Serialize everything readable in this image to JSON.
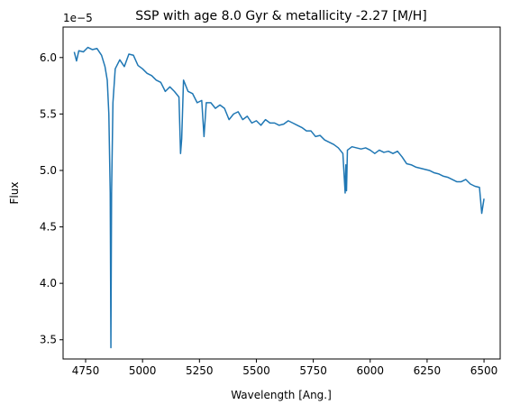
{
  "chart_data": {
    "type": "line",
    "title": "SSP with age 8.0 Gyr & metallicity -2.27 [M/H]",
    "x_label": "Wavelength [Ang.]",
    "y_label": "Flux",
    "y_offset_label": "1e−5",
    "x": [
      4700,
      4710,
      4720,
      4740,
      4760,
      4780,
      4800,
      4820,
      4835,
      4845,
      4852,
      4858,
      4861,
      4864,
      4870,
      4880,
      4900,
      4920,
      4940,
      4960,
      4980,
      5000,
      5020,
      5040,
      5060,
      5080,
      5100,
      5120,
      5140,
      5160,
      5167,
      5172,
      5180,
      5200,
      5220,
      5240,
      5260,
      5270,
      5280,
      5300,
      5320,
      5340,
      5360,
      5380,
      5400,
      5420,
      5440,
      5460,
      5480,
      5500,
      5520,
      5540,
      5560,
      5580,
      5600,
      5620,
      5640,
      5660,
      5680,
      5700,
      5720,
      5740,
      5760,
      5780,
      5800,
      5820,
      5840,
      5860,
      5880,
      5890,
      5893,
      5896,
      5900,
      5920,
      5940,
      5960,
      5980,
      6000,
      6020,
      6040,
      6060,
      6080,
      6100,
      6120,
      6140,
      6160,
      6180,
      6200,
      6220,
      6240,
      6260,
      6280,
      6300,
      6320,
      6340,
      6360,
      6380,
      6400,
      6420,
      6440,
      6460,
      6480,
      6490,
      6500
    ],
    "series": [
      {
        "color": "#1f77b4",
        "values": [
          6.05,
          5.97,
          6.06,
          6.05,
          6.09,
          6.07,
          6.08,
          6.02,
          5.92,
          5.8,
          5.5,
          4.8,
          3.43,
          4.8,
          5.6,
          5.9,
          5.98,
          5.92,
          6.03,
          6.02,
          5.93,
          5.9,
          5.86,
          5.84,
          5.8,
          5.78,
          5.7,
          5.74,
          5.7,
          5.65,
          5.15,
          5.28,
          5.8,
          5.7,
          5.68,
          5.6,
          5.62,
          5.3,
          5.6,
          5.6,
          5.55,
          5.58,
          5.55,
          5.45,
          5.5,
          5.52,
          5.45,
          5.48,
          5.42,
          5.44,
          5.4,
          5.45,
          5.42,
          5.42,
          5.4,
          5.41,
          5.44,
          5.42,
          5.4,
          5.38,
          5.35,
          5.35,
          5.3,
          5.31,
          5.27,
          5.25,
          5.23,
          5.2,
          5.15,
          4.8,
          5.05,
          4.82,
          5.18,
          5.21,
          5.2,
          5.19,
          5.2,
          5.18,
          5.15,
          5.18,
          5.16,
          5.17,
          5.15,
          5.17,
          5.12,
          5.06,
          5.05,
          5.03,
          5.02,
          5.01,
          5.0,
          4.98,
          4.97,
          4.95,
          4.94,
          4.92,
          4.9,
          4.9,
          4.92,
          4.88,
          4.86,
          4.85,
          4.62,
          4.75
        ]
      }
    ],
    "xlim": [
      4651,
      6571
    ],
    "ylim": [
      3.33,
      6.27
    ],
    "xticks": [
      4750,
      5000,
      5250,
      5500,
      5750,
      6000,
      6250,
      6500
    ],
    "yticks": [
      3.5,
      {
        "value": 4,
        "label": "4.0"
      },
      4.5,
      {
        "value": 5,
        "label": "5.0"
      },
      5.5,
      {
        "value": 6,
        "label": "6.0"
      }
    ]
  }
}
